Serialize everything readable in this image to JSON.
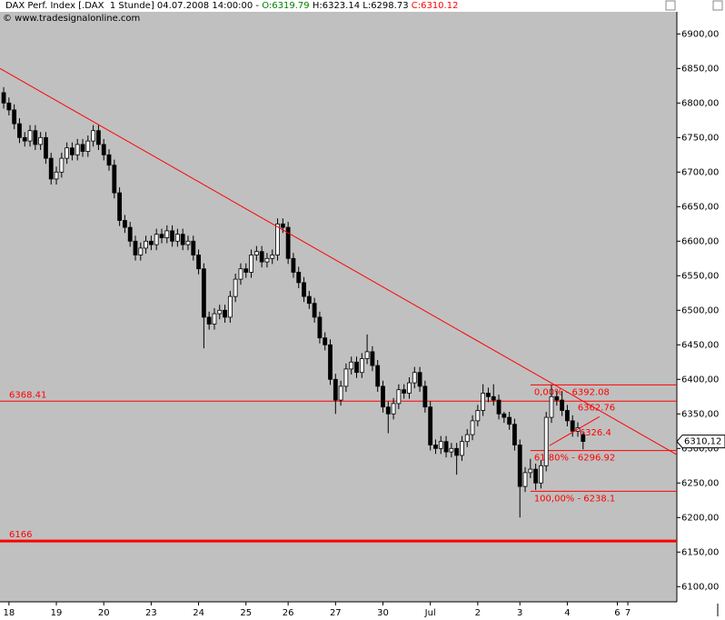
{
  "chart_data": {
    "type": "candlestick",
    "header": [
      {
        "text": "DAX Perf. Index [.DAX  1 Stunde] 04.07.2008 14:00:00 - ",
        "color": "#000000"
      },
      {
        "text": "O:6319.79",
        "color": "#008000"
      },
      {
        "text": " H:6323.14",
        "color": "#000000"
      },
      {
        "text": " L:6298.73",
        "color": "#000000"
      },
      {
        "text": " C:6310.12",
        "color": "#ff0000"
      }
    ],
    "copyright": "© www.tradesignalonline.com",
    "xlim": [
      -0.7,
      127.8
    ],
    "ylim": [
      6078,
      6932
    ],
    "xticks": [
      {
        "value": 1,
        "label": "18"
      },
      {
        "value": 10,
        "label": "19"
      },
      {
        "value": 19,
        "label": "20"
      },
      {
        "value": 28,
        "label": "23"
      },
      {
        "value": 37,
        "label": "24"
      },
      {
        "value": 46,
        "label": "25"
      },
      {
        "value": 54,
        "label": "26"
      },
      {
        "value": 63,
        "label": "27"
      },
      {
        "value": 72,
        "label": "30"
      },
      {
        "value": 81,
        "label": "Jul"
      },
      {
        "value": 90,
        "label": "2"
      },
      {
        "value": 98,
        "label": "3"
      },
      {
        "value": 107,
        "label": "4"
      },
      {
        "value": 116.5,
        "label": "6"
      },
      {
        "value": 118.5,
        "label": "7"
      }
    ],
    "yticks": [
      {
        "value": 6100,
        "label": "6100,00"
      },
      {
        "value": 6150,
        "label": "6150,00"
      },
      {
        "value": 6200,
        "label": "6200,00"
      },
      {
        "value": 6250,
        "label": "6250,00"
      },
      {
        "value": 6300,
        "label": "6300,00"
      },
      {
        "value": 6350,
        "label": "6350,00"
      },
      {
        "value": 6400,
        "label": "6400,00"
      },
      {
        "value": 6450,
        "label": "6450,00"
      },
      {
        "value": 6500,
        "label": "6500,00"
      },
      {
        "value": 6550,
        "label": "6550,00"
      },
      {
        "value": 6600,
        "label": "6600,00"
      },
      {
        "value": 6650,
        "label": "6650,00"
      },
      {
        "value": 6700,
        "label": "6700,00"
      },
      {
        "value": 6750,
        "label": "6750,00"
      },
      {
        "value": 6800,
        "label": "6800,00"
      },
      {
        "value": 6850,
        "label": "6850,00"
      },
      {
        "value": 6900,
        "label": "6900,00"
      }
    ],
    "open": [
      6815,
      6800,
      6790,
      6770,
      6750,
      6745,
      6760,
      6740,
      6750,
      6720,
      6690,
      6700,
      6720,
      6735,
      6725,
      6740,
      6730,
      6745,
      6760,
      6740,
      6725,
      6710,
      6670,
      6630,
      6620,
      6600,
      6580,
      6590,
      6600,
      6595,
      6610,
      6605,
      6615,
      6600,
      6610,
      6595,
      6600,
      6580,
      6560,
      6490,
      6480,
      6495,
      6500,
      6490,
      6520,
      6545,
      6560,
      6555,
      6580,
      6585,
      6570,
      6575,
      6580,
      6625,
      6620,
      6575,
      6555,
      6540,
      6520,
      6510,
      6490,
      6460,
      6450,
      6400,
      6370,
      6390,
      6415,
      6425,
      6410,
      6430,
      6440,
      6420,
      6390,
      6360,
      6350,
      6365,
      6385,
      6380,
      6395,
      6410,
      6390,
      6360,
      6305,
      6300,
      6310,
      6295,
      6300,
      6290,
      6310,
      6320,
      6340,
      6355,
      6380,
      6375,
      6370,
      6350,
      6345,
      6335,
      6305,
      6245,
      6265,
      6270,
      6250,
      6275,
      6345,
      6375,
      6370,
      6355,
      6340,
      6325,
      6319.79
    ],
    "high": [
      6823,
      6808,
      6798,
      6778,
      6758,
      6768,
      6768,
      6758,
      6758,
      6728,
      6708,
      6728,
      6743,
      6743,
      6748,
      6748,
      6753,
      6768,
      6768,
      6748,
      6733,
      6718,
      6678,
      6638,
      6628,
      6608,
      6598,
      6608,
      6608,
      6618,
      6618,
      6623,
      6623,
      6618,
      6618,
      6608,
      6608,
      6588,
      6568,
      6498,
      6503,
      6508,
      6508,
      6528,
      6553,
      6568,
      6568,
      6588,
      6593,
      6593,
      6583,
      6588,
      6633,
      6633,
      6628,
      6583,
      6563,
      6548,
      6528,
      6518,
      6498,
      6468,
      6458,
      6408,
      6398,
      6423,
      6433,
      6433,
      6438,
      6465,
      6448,
      6428,
      6398,
      6368,
      6373,
      6393,
      6393,
      6403,
      6418,
      6418,
      6398,
      6368,
      6313,
      6318,
      6318,
      6308,
      6308,
      6318,
      6328,
      6348,
      6363,
      6393,
      6388,
      6393,
      6378,
      6353,
      6353,
      6343,
      6313,
      6273,
      6285,
      6278,
      6283,
      6353,
      6392,
      6383,
      6383,
      6363,
      6348,
      6338,
      6323.14
    ],
    "low": [
      6792,
      6782,
      6762,
      6742,
      6737,
      6737,
      6732,
      6732,
      6712,
      6682,
      6682,
      6692,
      6712,
      6717,
      6717,
      6722,
      6722,
      6737,
      6732,
      6717,
      6702,
      6662,
      6622,
      6612,
      6592,
      6572,
      6572,
      6582,
      6587,
      6587,
      6597,
      6597,
      6592,
      6592,
      6587,
      6587,
      6572,
      6552,
      6445,
      6472,
      6472,
      6487,
      6482,
      6482,
      6512,
      6537,
      6547,
      6547,
      6572,
      6562,
      6562,
      6567,
      6572,
      6612,
      6567,
      6547,
      6532,
      6512,
      6502,
      6482,
      6452,
      6442,
      6392,
      6350,
      6362,
      6382,
      6407,
      6402,
      6402,
      6422,
      6412,
      6382,
      6352,
      6322,
      6342,
      6357,
      6372,
      6372,
      6387,
      6382,
      6352,
      6297,
      6292,
      6292,
      6287,
      6287,
      6262,
      6282,
      6302,
      6312,
      6332,
      6347,
      6367,
      6362,
      6342,
      6337,
      6327,
      6297,
      6200,
      6237,
      6257,
      6240,
      6242,
      6267,
      6337,
      6362,
      6347,
      6332,
      6317,
      6317,
      6298.73
    ],
    "close": [
      6800,
      6790,
      6770,
      6750,
      6745,
      6760,
      6740,
      6750,
      6720,
      6690,
      6700,
      6720,
      6735,
      6725,
      6740,
      6730,
      6745,
      6760,
      6740,
      6725,
      6710,
      6670,
      6630,
      6620,
      6600,
      6580,
      6590,
      6600,
      6595,
      6610,
      6605,
      6615,
      6600,
      6610,
      6595,
      6600,
      6580,
      6560,
      6490,
      6480,
      6495,
      6500,
      6490,
      6520,
      6545,
      6560,
      6555,
      6580,
      6585,
      6570,
      6575,
      6580,
      6625,
      6620,
      6575,
      6555,
      6540,
      6520,
      6510,
      6490,
      6460,
      6450,
      6400,
      6370,
      6390,
      6415,
      6425,
      6410,
      6430,
      6440,
      6420,
      6390,
      6360,
      6350,
      6365,
      6385,
      6380,
      6395,
      6410,
      6390,
      6360,
      6305,
      6300,
      6310,
      6295,
      6300,
      6290,
      6310,
      6320,
      6340,
      6355,
      6380,
      6375,
      6370,
      6350,
      6345,
      6335,
      6305,
      6245,
      6265,
      6270,
      6250,
      6275,
      6345,
      6375,
      6370,
      6355,
      6340,
      6325,
      6330,
      6310.12
    ],
    "line_color": "#ff0000",
    "trendlines": [
      {
        "x": [
          -0.7,
          127.8
        ],
        "values": [
          6850,
          6291
        ]
      },
      {
        "x": [
          103.6,
          113.1
        ],
        "values": [
          6304,
          6346
        ]
      }
    ],
    "horizontal_lines": [
      {
        "value": 6368.41,
        "label": "6368.41"
      },
      {
        "value": 6166,
        "label": "6166"
      }
    ],
    "fib_start": 100,
    "fib_levels": [
      {
        "value": 6392.08,
        "label": "0,00% - 6392.08"
      },
      {
        "value": 6296.92,
        "label": "61,80% - 6296.92"
      },
      {
        "value": 6238.1,
        "label": "100,00% - 6238.1"
      }
    ],
    "price_labels": [
      6362.76,
      6326.4
    ],
    "last_price": {
      "value": 6310.12,
      "label": "6310,12"
    }
  }
}
